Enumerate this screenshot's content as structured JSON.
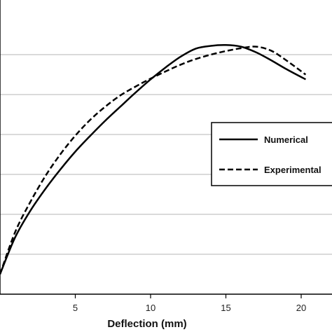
{
  "chart_data": {
    "type": "line",
    "title": "",
    "xlabel": "Deflection (mm)",
    "ylabel": "",
    "xlim": [
      0,
      24
    ],
    "ylim": [
      0,
      7
    ],
    "x_ticks": [
      5,
      10,
      15,
      20
    ],
    "y_gridlines": [
      1,
      2,
      3,
      4,
      5,
      6
    ],
    "grid": "horizontal",
    "legend_position": "right",
    "series": [
      {
        "name": "Numerical",
        "style": "solid",
        "color": "#000000",
        "x": [
          0,
          1,
          2,
          3,
          4,
          5,
          6,
          7,
          8,
          9,
          10,
          11,
          12,
          13,
          14,
          15,
          16,
          17,
          18,
          19,
          20.3
        ],
        "y": [
          0.5,
          1.42,
          2.08,
          2.63,
          3.12,
          3.57,
          3.97,
          4.35,
          4.7,
          5.05,
          5.38,
          5.68,
          5.95,
          6.15,
          6.22,
          6.24,
          6.2,
          6.06,
          5.86,
          5.64,
          5.38
        ]
      },
      {
        "name": "Experimental",
        "style": "dashed",
        "color": "#000000",
        "x": [
          0,
          1,
          2,
          3,
          4,
          5,
          6,
          7,
          8,
          9,
          10,
          11,
          12,
          13,
          14,
          15,
          16,
          17,
          18,
          19,
          20.3
        ],
        "y": [
          0.5,
          1.55,
          2.3,
          2.95,
          3.5,
          3.97,
          4.37,
          4.7,
          4.98,
          5.2,
          5.4,
          5.58,
          5.75,
          5.89,
          6.0,
          6.09,
          6.16,
          6.2,
          6.1,
          5.86,
          5.5
        ]
      }
    ]
  }
}
